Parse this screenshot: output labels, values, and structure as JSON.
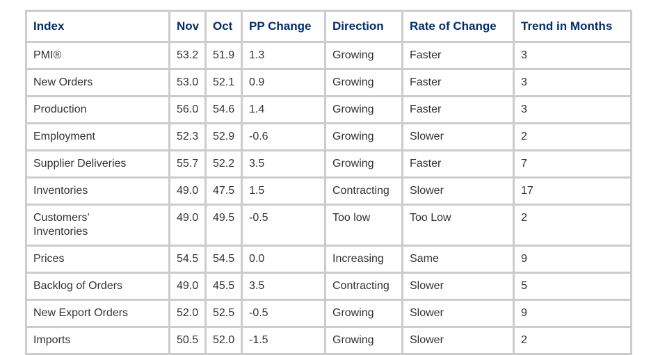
{
  "chart_data": {
    "type": "table",
    "headers": [
      "Index",
      "Nov",
      "Oct",
      "PP Change",
      "Direction",
      "Rate of Change",
      "Trend in Months"
    ],
    "column_keys": [
      "index",
      "nov",
      "oct",
      "pp-change",
      "direction",
      "rate-of-change",
      "trend-in-months"
    ],
    "rows": [
      [
        "PMI®",
        "53.2",
        "51.9",
        "1.3",
        "Growing",
        "Faster",
        "3"
      ],
      [
        "New Orders",
        "53.0",
        "52.1",
        "0.9",
        "Growing",
        "Faster",
        "3"
      ],
      [
        "Production",
        "56.0",
        "54.6",
        "1.4",
        "Growing",
        "Faster",
        "3"
      ],
      [
        "Employment",
        "52.3",
        "52.9",
        "-0.6",
        "Growing",
        "Slower",
        "2"
      ],
      [
        "Supplier Deliveries",
        "55.7",
        "52.2",
        "3.5",
        "Growing",
        "Faster",
        "7"
      ],
      [
        "Inventories",
        "49.0",
        "47.5",
        "1.5",
        "Contracting",
        "Slower",
        "17"
      ],
      [
        "Customers’\nInventories",
        "49.0",
        "49.5",
        "-0.5",
        "Too low",
        "Too Low",
        "2"
      ],
      [
        "Prices",
        "54.5",
        "54.5",
        "0.0",
        "Increasing",
        "Same",
        "9"
      ],
      [
        "Backlog of Orders",
        "49.0",
        "45.5",
        "3.5",
        "Contracting",
        "Slower",
        "5"
      ],
      [
        "New Export Orders",
        "52.0",
        "52.5",
        "-0.5",
        "Growing",
        "Slower",
        "9"
      ],
      [
        "Imports",
        "50.5",
        "52.0",
        "-1.5",
        "Growing",
        "Slower",
        "2"
      ]
    ]
  },
  "colors": {
    "header_text": "#002d72",
    "body_text": "#333333",
    "border": "#cccccc",
    "cell_bg": "#ffffff"
  }
}
